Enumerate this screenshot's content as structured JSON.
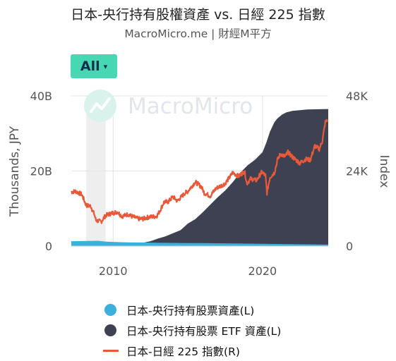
{
  "header": {
    "title": "日本-央行持有股權資產 vs. 日經 225 指數",
    "subtitle": "MacroMicro.me | 財經M平方"
  },
  "range_button": {
    "label": "All",
    "caret": "▾"
  },
  "watermark": {
    "text": "MacroMicro",
    "icon": "macromicro-logo-icon"
  },
  "colors": {
    "boj_stock": "#3bb0dc",
    "boj_etf": "#3d4152",
    "nikkei": "#e8593a",
    "recession_band": "#eeeeee",
    "watermark": "#d9f3ec"
  },
  "legend": [
    {
      "label": "日本-央行持有股票資產(L)",
      "shape": "dot",
      "color": "#3bb0dc"
    },
    {
      "label": "日本-央行持有股票 ETF 資產(L)",
      "shape": "dot",
      "color": "#3d4152"
    },
    {
      "label": "日本-日經 225 指數(R)",
      "shape": "line",
      "color": "#e8593a"
    }
  ],
  "chart_data": {
    "type": "area",
    "x_range": [
      2007.2,
      2024.4
    ],
    "x_ticks": [
      2010,
      2020
    ],
    "recession_shading": [
      2008.2,
      2009.5
    ],
    "left_axis": {
      "label": "Thousands, JPY",
      "range": [
        0,
        40
      ],
      "ticks": [
        "0",
        "20B",
        "40B"
      ],
      "tick_values": [
        0,
        20,
        40
      ],
      "unit": "billion"
    },
    "right_axis": {
      "label": "Index",
      "range": [
        0,
        48000
      ],
      "ticks": [
        "0",
        "24K",
        "48K"
      ],
      "tick_values": [
        0,
        24000,
        48000
      ]
    },
    "series": [
      {
        "name": "日本-央行持有股票資產(L)",
        "kind": "area",
        "axis": "left",
        "x": [
          2007.2,
          2009.0,
          2009.5,
          2010.0,
          2011.0,
          2012.0,
          2013.0,
          2014.0,
          2015.0,
          2016.0,
          2017.0,
          2018.0,
          2020.0,
          2022.0,
          2024.4
        ],
        "y": [
          1.3,
          1.4,
          1.2,
          1.1,
          1.0,
          0.95,
          0.9,
          0.85,
          0.8,
          0.8,
          0.75,
          0.7,
          0.6,
          0.5,
          0.4
        ]
      },
      {
        "name": "日本-央行持有股票 ETF 資產(L)",
        "kind": "area",
        "axis": "left",
        "x": [
          2007.2,
          2010.9,
          2011.5,
          2012.0,
          2012.5,
          2013.0,
          2013.5,
          2014.0,
          2014.5,
          2015.0,
          2015.5,
          2016.0,
          2016.5,
          2017.0,
          2017.5,
          2018.0,
          2018.5,
          2019.0,
          2019.5,
          2020.0,
          2020.25,
          2020.5,
          2020.8,
          2021.0,
          2021.3,
          2021.6,
          2022.0,
          2023.0,
          2024.4
        ],
        "y": [
          0,
          0,
          0.4,
          0.9,
          1.3,
          2.0,
          2.6,
          3.4,
          4.2,
          6.0,
          7.2,
          9.0,
          11.0,
          13.0,
          14.8,
          17.0,
          19.5,
          21.5,
          23.0,
          25.0,
          27.5,
          30.5,
          33.0,
          34.0,
          35.0,
          35.6,
          36.0,
          36.4,
          36.5
        ]
      },
      {
        "name": "日本-日經 225 指數(R)",
        "kind": "line",
        "axis": "right",
        "x": [
          2007.2,
          2007.5,
          2007.9,
          2008.2,
          2008.5,
          2008.75,
          2008.85,
          2009.2,
          2009.5,
          2009.9,
          2010.3,
          2010.6,
          2011.0,
          2011.2,
          2011.7,
          2012.0,
          2012.4,
          2012.9,
          2013.1,
          2013.4,
          2013.7,
          2014.0,
          2014.3,
          2014.8,
          2015.0,
          2015.5,
          2015.9,
          2016.1,
          2016.5,
          2016.9,
          2017.2,
          2017.5,
          2017.9,
          2018.0,
          2018.4,
          2018.8,
          2018.95,
          2019.2,
          2019.6,
          2019.95,
          2020.2,
          2020.3,
          2020.5,
          2020.8,
          2021.0,
          2021.2,
          2021.5,
          2021.7,
          2022.0,
          2022.5,
          2022.9,
          2023.2,
          2023.5,
          2023.8,
          2024.0,
          2024.2,
          2024.35
        ],
        "y": [
          17300,
          17500,
          16500,
          13000,
          12800,
          10000,
          8200,
          7800,
          9800,
          10500,
          10900,
          9500,
          10200,
          9600,
          8700,
          8700,
          9300,
          9500,
          11000,
          14000,
          14200,
          15800,
          14400,
          16900,
          17500,
          20500,
          19000,
          17000,
          16000,
          18500,
          19200,
          20000,
          22700,
          23500,
          22300,
          24000,
          20000,
          21500,
          21000,
          23700,
          22500,
          17000,
          22000,
          23500,
          27500,
          29500,
          28500,
          30000,
          28500,
          26500,
          27800,
          27500,
          32000,
          31000,
          33500,
          39500,
          40500
        ]
      }
    ]
  }
}
